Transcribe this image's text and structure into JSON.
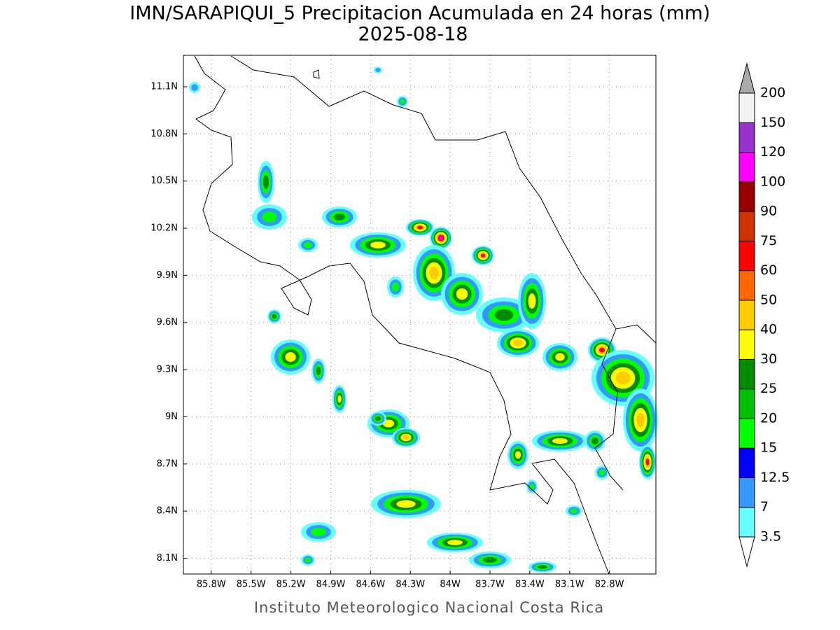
{
  "title": "IMN/SARAPIQUI_5 Precipitacion Acumulada en 24 horas (mm)",
  "subtitle": "2025-08-18",
  "footer": "Instituto Meteorologico Nacional Costa Rica",
  "map": {
    "xlim": [
      -86.01,
      -82.45
    ],
    "ylim": [
      8.0,
      11.3
    ],
    "xticks": [
      {
        "value": -85.8,
        "label": "85.8W"
      },
      {
        "value": -85.5,
        "label": "85.5W"
      },
      {
        "value": -85.2,
        "label": "85.2W"
      },
      {
        "value": -84.9,
        "label": "84.9W"
      },
      {
        "value": -84.6,
        "label": "84.6W"
      },
      {
        "value": -84.3,
        "label": "84.3W"
      },
      {
        "value": -84.0,
        "label": "84W"
      },
      {
        "value": -83.7,
        "label": "83.7W"
      },
      {
        "value": -83.4,
        "label": "83.4W"
      },
      {
        "value": -83.1,
        "label": "83.1W"
      },
      {
        "value": -82.8,
        "label": "82.8W"
      }
    ],
    "yticks": [
      {
        "value": 8.1,
        "label": "8.1N"
      },
      {
        "value": 8.4,
        "label": "8.4N"
      },
      {
        "value": 8.7,
        "label": "8.7N"
      },
      {
        "value": 9.0,
        "label": "9N"
      },
      {
        "value": 9.3,
        "label": "9.3N"
      },
      {
        "value": 9.6,
        "label": "9.6N"
      },
      {
        "value": 9.9,
        "label": "9.9N"
      },
      {
        "value": 10.2,
        "label": "10.2N"
      },
      {
        "value": 10.5,
        "label": "10.5N"
      },
      {
        "value": 10.8,
        "label": "10.8N"
      },
      {
        "value": 11.1,
        "label": "11.1N"
      }
    ],
    "grid": true
  },
  "colorbar": {
    "levels": [
      3.5,
      7,
      12.5,
      15,
      20,
      25,
      30,
      40,
      50,
      60,
      75,
      90,
      100,
      120,
      150,
      200
    ],
    "colors": [
      "#66ffff",
      "#3399ff",
      "#0000ff",
      "#00ff00",
      "#00c000",
      "#008c00",
      "#ffff00",
      "#ffcc00",
      "#ff6600",
      "#ff0000",
      "#cc3300",
      "#990000",
      "#ff00ff",
      "#9933cc",
      "#f2f2f2"
    ],
    "under_color": "#ffffff",
    "over_color": "#aaaaaa"
  }
}
